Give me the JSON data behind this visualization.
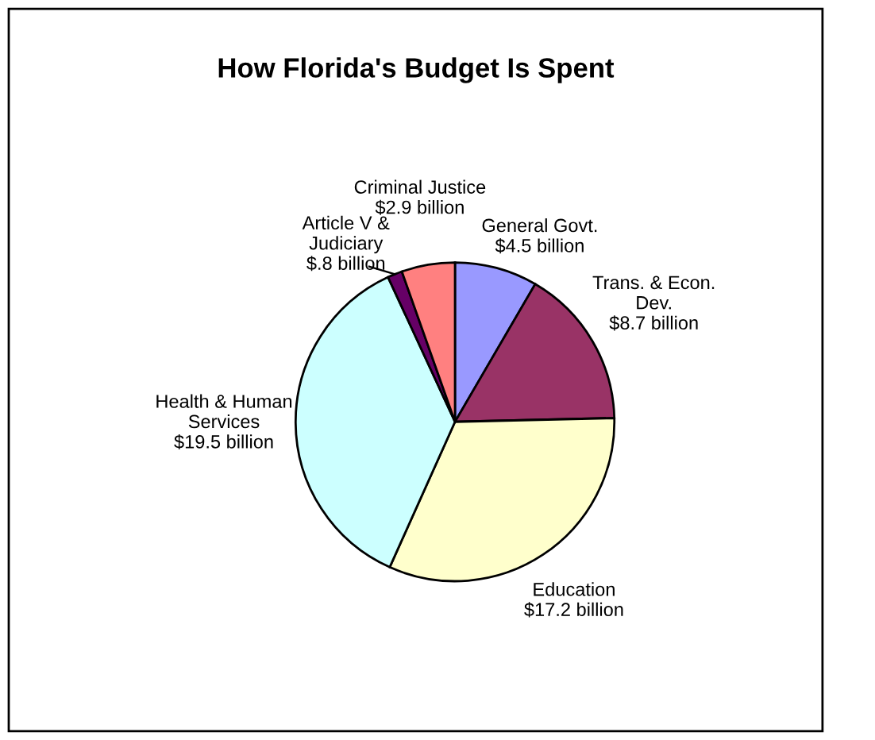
{
  "chart_data": {
    "type": "pie",
    "title": "How Florida's Budget Is Spent",
    "categories": [
      "General Govt.",
      "Trans. & Econ.\nDev.",
      "Education",
      "Health & Human\nServices",
      "Article V &\nJudiciary",
      "Criminal Justice"
    ],
    "values": [
      4.5,
      8.7,
      17.2,
      19.5,
      0.8,
      2.9
    ],
    "value_labels": [
      "$4.5 billion",
      "$8.7 billion",
      "$17.2 billion",
      "$19.5 billion",
      "$.8 billion",
      "$2.9 billion"
    ],
    "colors": [
      "#9999ff",
      "#993366",
      "#ffffcc",
      "#ccffff",
      "#660066",
      "#ff8080"
    ],
    "legend": false
  }
}
